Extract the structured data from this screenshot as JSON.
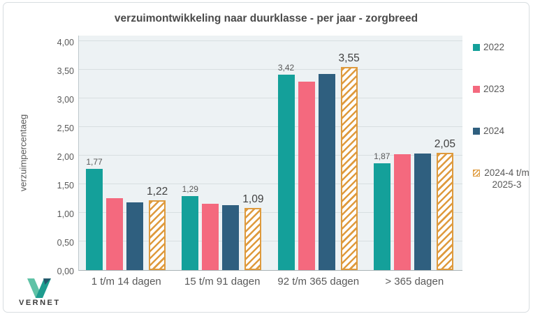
{
  "title": "verzuimontwikkeling naar duurklasse - per jaar - zorgbreed",
  "y_axis_title": "verzuimpercentaeg",
  "logo": {
    "text": "VERNET"
  },
  "colors": {
    "teal": "#14A09A",
    "pink": "#F4697E",
    "blue": "#2F5F7F",
    "orange": "#DE9A3D",
    "plot_background": "#EDF2F4",
    "gridline": "#D8DFE1",
    "text_gray": "#595959"
  },
  "chart_data": {
    "type": "bar",
    "title": "verzuimontwikkeling naar duurklasse - per jaar - zorgbreed",
    "xlabel": "",
    "ylabel": "verzuimpercentaeg",
    "ylim": [
      0,
      4.0
    ],
    "grid": "horizontal",
    "legend_position": "right",
    "yticks": [
      {
        "value": 0.0,
        "label": "0,00"
      },
      {
        "value": 0.5,
        "label": "0,50"
      },
      {
        "value": 1.0,
        "label": "1,00"
      },
      {
        "value": 1.5,
        "label": "1,50"
      },
      {
        "value": 2.0,
        "label": "2,00"
      },
      {
        "value": 2.5,
        "label": "2,50"
      },
      {
        "value": 3.0,
        "label": "3,00"
      },
      {
        "value": 3.5,
        "label": "3,50"
      },
      {
        "value": 4.0,
        "label": "4,00"
      }
    ],
    "categories": [
      "1 t/m 14 dagen",
      "15 t/m 91 dagen",
      "92 t/m 365 dagen",
      "> 365 dagen"
    ],
    "series": [
      {
        "name": "2022",
        "color": "#14A09A",
        "hatched": false,
        "show_labels": true,
        "label_size": "small",
        "values": [
          1.77,
          1.29,
          3.42,
          1.87
        ],
        "value_labels": [
          "1,77",
          "1,29",
          "3,42",
          "1,87"
        ]
      },
      {
        "name": "2023",
        "color": "#F4697E",
        "hatched": false,
        "show_labels": false,
        "label_size": "small",
        "values": [
          1.26,
          1.16,
          3.29,
          2.03
        ],
        "value_labels": []
      },
      {
        "name": "2024",
        "color": "#2F5F7F",
        "hatched": false,
        "show_labels": false,
        "label_size": "small",
        "values": [
          1.18,
          1.13,
          3.43,
          2.04
        ],
        "value_labels": []
      },
      {
        "name": "2024-4 t/m 2025-3",
        "color": "#DE9A3D",
        "hatched": true,
        "show_labels": true,
        "label_size": "large",
        "values": [
          1.22,
          1.09,
          3.55,
          2.05
        ],
        "value_labels": [
          "1,22",
          "1,09",
          "3,55",
          "2,05"
        ]
      }
    ]
  }
}
